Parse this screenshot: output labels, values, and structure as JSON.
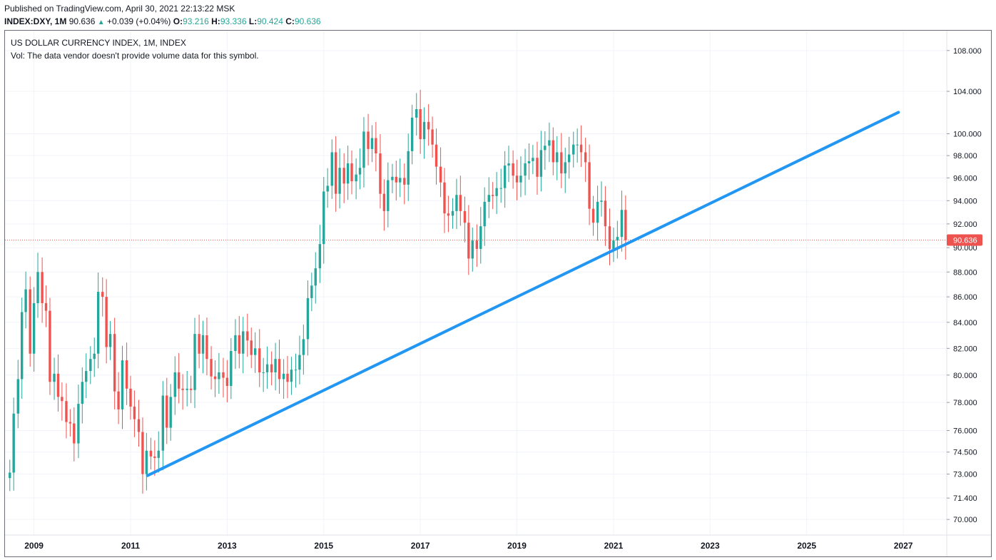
{
  "header": {
    "published": "Published on TradingView.com, April 30, 2021 22:13:22 MSK",
    "symbol": "INDEX:DXY, 1M",
    "last": "90.636",
    "arrow": "▲",
    "change": "+0.039 (+0.04%)",
    "o_key": "O:",
    "o_val": "93.216",
    "h_key": "H:",
    "h_val": "93.336",
    "l_key": "L:",
    "l_val": "90.424",
    "c_key": "C:",
    "c_val": "90.636"
  },
  "chart_data": {
    "type": "candlestick",
    "title": "US DOLLAR CURRENCY INDEX, 1M, INDEX",
    "volume_note": "Vol: The data vendor doesn't provide volume data for this symbol.",
    "y_scale": "log",
    "ylim": [
      69.0,
      110.0
    ],
    "xlim": [
      2008.4,
      2027.9
    ],
    "y_ticks": [
      {
        "value": 108,
        "label": "108.000"
      },
      {
        "value": 104,
        "label": "104.000"
      },
      {
        "value": 100,
        "label": "100.000"
      },
      {
        "value": 98,
        "label": "98.000"
      },
      {
        "value": 96,
        "label": "96.000"
      },
      {
        "value": 94,
        "label": "94.000"
      },
      {
        "value": 92,
        "label": "92.000"
      },
      {
        "value": 90,
        "label": "90.000"
      },
      {
        "value": 88,
        "label": "88.000"
      },
      {
        "value": 86,
        "label": "86.000"
      },
      {
        "value": 84,
        "label": "84.000"
      },
      {
        "value": 82,
        "label": "82.000"
      },
      {
        "value": 80,
        "label": "80.000"
      },
      {
        "value": 78,
        "label": "78.000"
      },
      {
        "value": 76,
        "label": "76.000"
      },
      {
        "value": 74.5,
        "label": "74.500"
      },
      {
        "value": 73,
        "label": "73.000"
      },
      {
        "value": 71.4,
        "label": "71.400"
      },
      {
        "value": 70,
        "label": "70.000"
      }
    ],
    "x_ticks": [
      {
        "value": 2009,
        "label": "2009"
      },
      {
        "value": 2011,
        "label": "2011"
      },
      {
        "value": 2013,
        "label": "2013"
      },
      {
        "value": 2015,
        "label": "2015"
      },
      {
        "value": 2017,
        "label": "2017"
      },
      {
        "value": 2019,
        "label": "2019"
      },
      {
        "value": 2021,
        "label": "2021"
      },
      {
        "value": 2023,
        "label": "2023"
      },
      {
        "value": 2025,
        "label": "2025"
      },
      {
        "value": 2027,
        "label": "2027"
      }
    ],
    "last_price": 90.636,
    "last_price_label": "90.636",
    "colors": {
      "up": "#26a69a",
      "down": "#ef5350",
      "trendline": "#2196f3",
      "last_price": "#ef5350",
      "grid": "#f0f3fa"
    },
    "trendline": {
      "start": {
        "t": 2011.35,
        "price": 72.9
      },
      "end": {
        "t": 2026.9,
        "price": 102.0
      }
    },
    "closes": [
      {
        "t": 2008.5,
        "close": 73.1
      },
      {
        "t": 2008.58,
        "close": 77.2
      },
      {
        "t": 2008.67,
        "close": 79.7
      },
      {
        "t": 2008.75,
        "close": 84.8
      },
      {
        "t": 2008.83,
        "close": 86.6
      },
      {
        "t": 2008.92,
        "close": 81.6
      },
      {
        "t": 2009.0,
        "close": 85.5
      },
      {
        "t": 2009.08,
        "close": 88.0
      },
      {
        "t": 2009.17,
        "close": 85.5
      },
      {
        "t": 2009.25,
        "close": 84.9
      },
      {
        "t": 2009.33,
        "close": 79.5
      },
      {
        "t": 2009.42,
        "close": 80.1
      },
      {
        "t": 2009.5,
        "close": 78.4
      },
      {
        "t": 2009.58,
        "close": 78.1
      },
      {
        "t": 2009.67,
        "close": 76.6
      },
      {
        "t": 2009.75,
        "close": 76.5
      },
      {
        "t": 2009.83,
        "close": 75.1
      },
      {
        "t": 2009.92,
        "close": 77.9
      },
      {
        "t": 2010.0,
        "close": 79.5
      },
      {
        "t": 2010.08,
        "close": 80.3
      },
      {
        "t": 2010.17,
        "close": 81.2
      },
      {
        "t": 2010.25,
        "close": 81.6
      },
      {
        "t": 2010.33,
        "close": 86.4
      },
      {
        "t": 2010.42,
        "close": 86.0
      },
      {
        "t": 2010.5,
        "close": 82.1
      },
      {
        "t": 2010.58,
        "close": 83.1
      },
      {
        "t": 2010.67,
        "close": 78.8
      },
      {
        "t": 2010.75,
        "close": 77.5
      },
      {
        "t": 2010.83,
        "close": 81.1
      },
      {
        "t": 2010.92,
        "close": 79.0
      },
      {
        "t": 2011.0,
        "close": 77.7
      },
      {
        "t": 2011.08,
        "close": 76.8
      },
      {
        "t": 2011.17,
        "close": 75.9
      },
      {
        "t": 2011.25,
        "close": 73.0
      },
      {
        "t": 2011.33,
        "close": 74.6
      },
      {
        "t": 2011.42,
        "close": 74.2
      },
      {
        "t": 2011.5,
        "close": 74.1
      },
      {
        "t": 2011.58,
        "close": 74.6
      },
      {
        "t": 2011.67,
        "close": 78.5
      },
      {
        "t": 2011.75,
        "close": 76.2
      },
      {
        "t": 2011.83,
        "close": 78.4
      },
      {
        "t": 2011.92,
        "close": 80.2
      },
      {
        "t": 2012.0,
        "close": 79.0
      },
      {
        "t": 2012.08,
        "close": 78.9
      },
      {
        "t": 2012.17,
        "close": 79.0
      },
      {
        "t": 2012.25,
        "close": 78.9
      },
      {
        "t": 2012.33,
        "close": 83.1
      },
      {
        "t": 2012.42,
        "close": 81.6
      },
      {
        "t": 2012.5,
        "close": 83.0
      },
      {
        "t": 2012.58,
        "close": 81.2
      },
      {
        "t": 2012.67,
        "close": 79.9
      },
      {
        "t": 2012.75,
        "close": 79.7
      },
      {
        "t": 2012.83,
        "close": 80.2
      },
      {
        "t": 2012.92,
        "close": 79.8
      },
      {
        "t": 2013.0,
        "close": 79.2
      },
      {
        "t": 2013.08,
        "close": 81.8
      },
      {
        "t": 2013.17,
        "close": 83.0
      },
      {
        "t": 2013.25,
        "close": 81.6
      },
      {
        "t": 2013.33,
        "close": 83.3
      },
      {
        "t": 2013.42,
        "close": 82.6
      },
      {
        "t": 2013.5,
        "close": 81.5
      },
      {
        "t": 2013.58,
        "close": 82.0
      },
      {
        "t": 2013.67,
        "close": 80.2
      },
      {
        "t": 2013.75,
        "close": 80.2
      },
      {
        "t": 2013.83,
        "close": 80.8
      },
      {
        "t": 2013.92,
        "close": 80.2
      },
      {
        "t": 2014.0,
        "close": 81.2
      },
      {
        "t": 2014.08,
        "close": 79.7
      },
      {
        "t": 2014.17,
        "close": 80.1
      },
      {
        "t": 2014.25,
        "close": 79.5
      },
      {
        "t": 2014.33,
        "close": 80.4
      },
      {
        "t": 2014.42,
        "close": 80.4
      },
      {
        "t": 2014.5,
        "close": 81.5
      },
      {
        "t": 2014.58,
        "close": 82.7
      },
      {
        "t": 2014.67,
        "close": 85.9
      },
      {
        "t": 2014.75,
        "close": 86.9
      },
      {
        "t": 2014.83,
        "close": 88.3
      },
      {
        "t": 2014.92,
        "close": 90.3
      },
      {
        "t": 2015.0,
        "close": 94.8
      },
      {
        "t": 2015.08,
        "close": 95.3
      },
      {
        "t": 2015.17,
        "close": 98.3
      },
      {
        "t": 2015.25,
        "close": 94.6
      },
      {
        "t": 2015.33,
        "close": 96.9
      },
      {
        "t": 2015.42,
        "close": 95.5
      },
      {
        "t": 2015.5,
        "close": 97.3
      },
      {
        "t": 2015.58,
        "close": 95.7
      },
      {
        "t": 2015.67,
        "close": 96.3
      },
      {
        "t": 2015.75,
        "close": 96.9
      },
      {
        "t": 2015.83,
        "close": 100.2
      },
      {
        "t": 2015.92,
        "close": 98.6
      },
      {
        "t": 2016.0,
        "close": 99.6
      },
      {
        "t": 2016.08,
        "close": 98.2
      },
      {
        "t": 2016.17,
        "close": 94.6
      },
      {
        "t": 2016.25,
        "close": 93.1
      },
      {
        "t": 2016.33,
        "close": 95.8
      },
      {
        "t": 2016.42,
        "close": 96.1
      },
      {
        "t": 2016.5,
        "close": 95.6
      },
      {
        "t": 2016.58,
        "close": 96.0
      },
      {
        "t": 2016.67,
        "close": 95.4
      },
      {
        "t": 2016.75,
        "close": 98.4
      },
      {
        "t": 2016.83,
        "close": 101.5
      },
      {
        "t": 2016.92,
        "close": 102.3
      },
      {
        "t": 2017.0,
        "close": 99.5
      },
      {
        "t": 2017.08,
        "close": 101.1
      },
      {
        "t": 2017.17,
        "close": 100.4
      },
      {
        "t": 2017.25,
        "close": 99.0
      },
      {
        "t": 2017.33,
        "close": 97.0
      },
      {
        "t": 2017.42,
        "close": 95.6
      },
      {
        "t": 2017.5,
        "close": 92.9
      },
      {
        "t": 2017.58,
        "close": 92.7
      },
      {
        "t": 2017.67,
        "close": 93.1
      },
      {
        "t": 2017.75,
        "close": 94.5
      },
      {
        "t": 2017.83,
        "close": 93.1
      },
      {
        "t": 2017.92,
        "close": 92.1
      },
      {
        "t": 2018.0,
        "close": 89.1
      },
      {
        "t": 2018.08,
        "close": 90.6
      },
      {
        "t": 2018.17,
        "close": 89.9
      },
      {
        "t": 2018.25,
        "close": 91.8
      },
      {
        "t": 2018.33,
        "close": 93.9
      },
      {
        "t": 2018.42,
        "close": 94.5
      },
      {
        "t": 2018.5,
        "close": 94.4
      },
      {
        "t": 2018.58,
        "close": 95.1
      },
      {
        "t": 2018.67,
        "close": 95.1
      },
      {
        "t": 2018.75,
        "close": 97.1
      },
      {
        "t": 2018.83,
        "close": 97.3
      },
      {
        "t": 2018.92,
        "close": 96.2
      },
      {
        "t": 2019.0,
        "close": 95.6
      },
      {
        "t": 2019.08,
        "close": 96.2
      },
      {
        "t": 2019.17,
        "close": 97.3
      },
      {
        "t": 2019.25,
        "close": 97.5
      },
      {
        "t": 2019.33,
        "close": 97.8
      },
      {
        "t": 2019.42,
        "close": 96.1
      },
      {
        "t": 2019.5,
        "close": 98.5
      },
      {
        "t": 2019.58,
        "close": 98.9
      },
      {
        "t": 2019.67,
        "close": 99.4
      },
      {
        "t": 2019.75,
        "close": 97.4
      },
      {
        "t": 2019.83,
        "close": 98.3
      },
      {
        "t": 2019.92,
        "close": 96.4
      },
      {
        "t": 2020.0,
        "close": 97.4
      },
      {
        "t": 2020.08,
        "close": 98.1
      },
      {
        "t": 2020.17,
        "close": 99.0
      },
      {
        "t": 2020.25,
        "close": 99.0
      },
      {
        "t": 2020.33,
        "close": 98.3
      },
      {
        "t": 2020.42,
        "close": 97.4
      },
      {
        "t": 2020.5,
        "close": 93.3
      },
      {
        "t": 2020.58,
        "close": 92.1
      },
      {
        "t": 2020.67,
        "close": 93.9
      },
      {
        "t": 2020.75,
        "close": 94.0
      },
      {
        "t": 2020.83,
        "close": 91.8
      },
      {
        "t": 2020.92,
        "close": 89.9
      },
      {
        "t": 2021.0,
        "close": 90.6
      },
      {
        "t": 2021.08,
        "close": 90.9
      },
      {
        "t": 2021.17,
        "close": 93.2
      },
      {
        "t": 2021.25,
        "close": 90.636
      }
    ]
  }
}
